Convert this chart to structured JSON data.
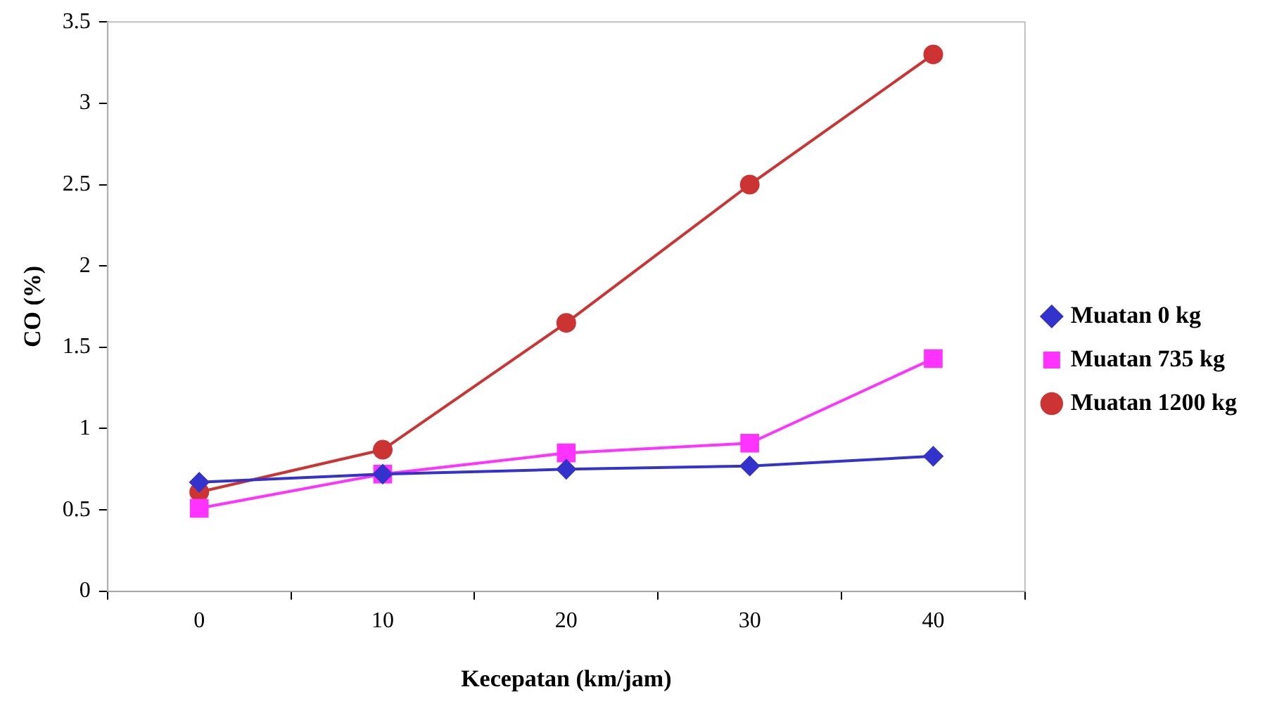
{
  "chart_data": {
    "type": "line",
    "xlabel": "Kecepatan (km/jam)",
    "ylabel": "CO (%)",
    "categories": [
      "0",
      "10",
      "20",
      "30",
      "40"
    ],
    "series": [
      {
        "name": "Muatan 0 kg",
        "color": "#3333cc",
        "marker": "diamond",
        "values": [
          0.67,
          0.72,
          0.75,
          0.77,
          0.83
        ]
      },
      {
        "name": "Muatan 735 kg",
        "color": "#ff33ff",
        "marker": "square",
        "values": [
          0.51,
          0.72,
          0.85,
          0.91,
          1.43
        ]
      },
      {
        "name": "Muatan 1200 kg",
        "color": "#cc3333",
        "marker": "circle",
        "values": [
          0.61,
          0.87,
          1.65,
          2.5,
          3.3
        ]
      }
    ],
    "ylim": [
      0,
      3.5
    ],
    "yticks": [
      0,
      0.5,
      1,
      1.5,
      2,
      2.5,
      3,
      3.5
    ],
    "grid": false,
    "legend": "right"
  }
}
